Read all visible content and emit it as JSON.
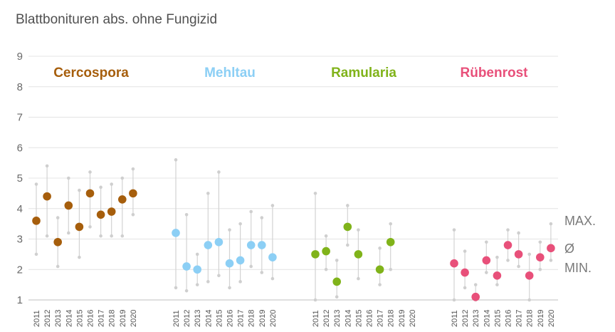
{
  "chart_data": {
    "type": "scatter",
    "title": "Blattbonituren abs. ohne Fungizid",
    "ylim": [
      1,
      9
    ],
    "yticks": [
      1,
      2,
      3,
      4,
      5,
      6,
      7,
      8,
      9
    ],
    "grid": true,
    "legend_labels": {
      "max": "MAX.",
      "mean": "Ø",
      "min": "MIN."
    },
    "legend_position": "right",
    "range_marker_color": "#d3d3d3",
    "groups": [
      {
        "name": "Cercospora",
        "color": "#a65e0c",
        "years": [
          "2011",
          "2012",
          "2013",
          "2014",
          "2015",
          "2016",
          "2017",
          "2018",
          "2019",
          "2020"
        ],
        "mean": [
          3.6,
          4.4,
          2.9,
          4.1,
          3.4,
          4.5,
          3.8,
          3.9,
          4.3,
          4.5
        ],
        "min": [
          2.5,
          3.1,
          2.1,
          3.2,
          2.4,
          3.4,
          3.1,
          3.1,
          3.1,
          3.8
        ],
        "max": [
          4.8,
          5.4,
          3.7,
          5.0,
          4.6,
          5.2,
          4.7,
          4.8,
          5.0,
          5.3
        ]
      },
      {
        "name": "Mehltau",
        "color": "#8ccff5",
        "years": [
          "2011",
          "2012",
          "2013",
          "2014",
          "2015",
          "2016",
          "2017",
          "2018",
          "2019",
          "2020"
        ],
        "mean": [
          3.2,
          2.1,
          2.0,
          2.8,
          2.9,
          2.2,
          2.3,
          2.8,
          2.8,
          2.4
        ],
        "min": [
          1.4,
          1.3,
          1.5,
          1.6,
          1.8,
          1.4,
          1.6,
          2.1,
          1.9,
          1.7
        ],
        "max": [
          5.6,
          3.8,
          2.5,
          4.5,
          5.2,
          3.3,
          3.5,
          3.9,
          3.7,
          4.1
        ]
      },
      {
        "name": "Ramularia",
        "color": "#80b31a",
        "years": [
          "2011",
          "2012",
          "2013",
          "2014",
          "2015",
          "2016",
          "2017",
          "2018",
          "2019",
          "2020"
        ],
        "mean": [
          2.5,
          2.6,
          1.6,
          3.4,
          2.5,
          null,
          2.0,
          2.9,
          null,
          null
        ],
        "min": [
          1.0,
          2.0,
          1.1,
          2.8,
          1.7,
          null,
          1.5,
          2.0,
          null,
          null
        ],
        "max": [
          4.5,
          3.1,
          2.3,
          4.1,
          3.3,
          null,
          2.7,
          3.5,
          null,
          null
        ]
      },
      {
        "name": "Rübenrost",
        "color": "#e8507a",
        "years": [
          "2011",
          "2012",
          "2013",
          "2014",
          "2015",
          "2016",
          "2017",
          "2018",
          "2019",
          "2020"
        ],
        "mean": [
          2.2,
          1.9,
          1.1,
          2.3,
          1.8,
          2.8,
          2.5,
          1.8,
          2.4,
          2.7
        ],
        "min": [
          1.0,
          1.4,
          1.0,
          1.9,
          1.5,
          2.3,
          2.1,
          1.0,
          2.0,
          2.3
        ],
        "max": [
          3.3,
          2.6,
          1.5,
          2.9,
          2.4,
          3.3,
          3.2,
          2.5,
          2.9,
          3.5
        ]
      }
    ]
  }
}
